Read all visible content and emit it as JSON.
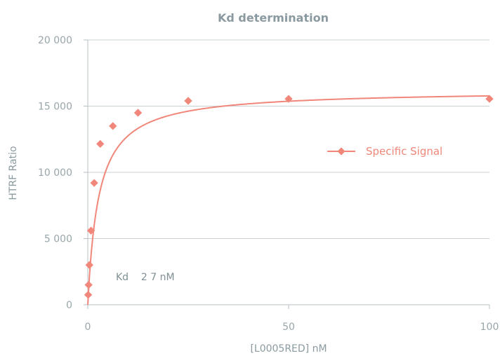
{
  "chart_data": {
    "type": "scatter",
    "title": "Kd determination",
    "xlabel": "[L0005RED] nM",
    "ylabel": "HTRF Ratio",
    "xlim": [
      0,
      100
    ],
    "ylim": [
      0,
      20000
    ],
    "x_ticks": [
      0,
      50,
      100
    ],
    "x_tick_labels": [
      "0",
      "50",
      "100"
    ],
    "y_ticks": [
      0,
      5000,
      10000,
      15000,
      20000
    ],
    "y_tick_labels": [
      "0",
      "5 000",
      "10 000",
      "15 000",
      "20 000"
    ],
    "grid": "horizontal",
    "legend_position": "right",
    "annotation": "Kd    2 7 nM",
    "series": [
      {
        "name": "Specific Signal",
        "color": "#f0877a",
        "x": [
          0.1,
          0.2,
          0.4,
          0.8,
          1.6,
          3.1,
          6.25,
          12.5,
          25,
          50,
          100
        ],
        "y": [
          750,
          1500,
          3000,
          5600,
          9200,
          12150,
          13500,
          14500,
          15400,
          15550,
          15550
        ],
        "fit": {
          "model": "one-site binding",
          "bmax": 16200,
          "kd": 2.7
        }
      }
    ]
  }
}
